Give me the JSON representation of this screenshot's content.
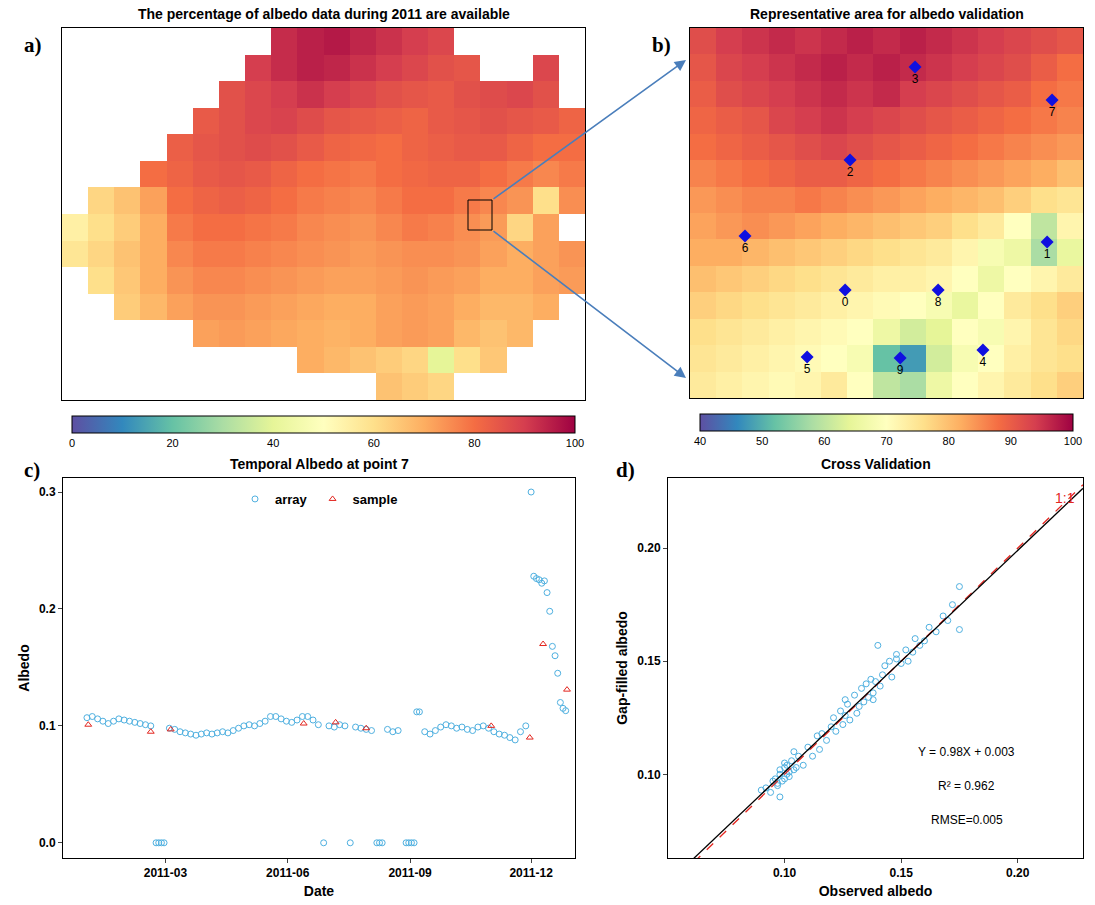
{
  "chart_data": [
    {
      "type": "heatmap",
      "panel": "a)",
      "title": "The percentage of albedo data during 2011 are available",
      "tick_labels": false,
      "grid": false,
      "z": [
        [
          null,
          null,
          null,
          null,
          null,
          null,
          null,
          null,
          93,
          95,
          96,
          94,
          92,
          90,
          88,
          null,
          null,
          null,
          null,
          null
        ],
        [
          null,
          null,
          null,
          null,
          null,
          null,
          null,
          90,
          93,
          95,
          94,
          92,
          90,
          88,
          86,
          85,
          null,
          null,
          88,
          null
        ],
        [
          null,
          null,
          null,
          null,
          null,
          null,
          86,
          88,
          90,
          92,
          90,
          88,
          86,
          85,
          84,
          86,
          87,
          88,
          86,
          null
        ],
        [
          null,
          null,
          null,
          null,
          null,
          84,
          86,
          88,
          89,
          87,
          85,
          84,
          83,
          82,
          84,
          85,
          86,
          85,
          84,
          82
        ],
        [
          null,
          null,
          null,
          null,
          83,
          85,
          86,
          87,
          86,
          84,
          82,
          81,
          80,
          82,
          83,
          84,
          84,
          82,
          80,
          80
        ],
        [
          null,
          null,
          null,
          80,
          82,
          84,
          85,
          84,
          82,
          80,
          79,
          78,
          80,
          81,
          82,
          82,
          80,
          78,
          76,
          78
        ],
        [
          null,
          62,
          66,
          72,
          80,
          82,
          83,
          82,
          80,
          78,
          77,
          76,
          78,
          80,
          80,
          78,
          76,
          74,
          60,
          75
        ],
        [
          55,
          60,
          64,
          70,
          78,
          80,
          80,
          79,
          78,
          76,
          75,
          74,
          76,
          78,
          77,
          75,
          73,
          62,
          72,
          null
        ],
        [
          58,
          62,
          66,
          70,
          76,
          78,
          78,
          77,
          76,
          75,
          74,
          73,
          74,
          75,
          75,
          74,
          72,
          70,
          72,
          74
        ],
        [
          null,
          60,
          65,
          70,
          74,
          76,
          76,
          75,
          74,
          73,
          72,
          72,
          73,
          74,
          73,
          72,
          70,
          70,
          72,
          73
        ],
        [
          null,
          null,
          64,
          68,
          72,
          74,
          74,
          73,
          72,
          71,
          70,
          70,
          72,
          73,
          72,
          70,
          68,
          68,
          70,
          null
        ],
        [
          null,
          null,
          null,
          null,
          null,
          72,
          73,
          72,
          71,
          70,
          69,
          70,
          72,
          73,
          72,
          68,
          66,
          68,
          null,
          null
        ],
        [
          null,
          null,
          null,
          null,
          null,
          null,
          null,
          null,
          null,
          70,
          68,
          66,
          64,
          62,
          40,
          60,
          65,
          null,
          null,
          null
        ],
        [
          null,
          null,
          null,
          null,
          null,
          null,
          null,
          null,
          null,
          null,
          null,
          null,
          66,
          64,
          62,
          null,
          null,
          null,
          null,
          null
        ]
      ],
      "color_range": [
        0,
        100
      ],
      "color_ticks": [
        0,
        20,
        40,
        60,
        80,
        100
      ]
    },
    {
      "type": "heatmap",
      "panel": "b)",
      "title": "Representative area for albedo validation",
      "tick_labels": false,
      "grid": false,
      "z": [
        [
          92,
          94,
          95,
          96,
          95,
          96,
          97,
          96,
          97,
          96,
          95,
          94,
          93,
          92,
          91
        ],
        [
          91,
          93,
          94,
          95,
          96,
          97,
          96,
          97,
          96,
          95,
          94,
          93,
          92,
          90,
          88
        ],
        [
          90,
          92,
          93,
          94,
          95,
          96,
          95,
          96,
          94,
          93,
          92,
          91,
          90,
          88,
          87
        ],
        [
          89,
          90,
          91,
          93,
          94,
          95,
          94,
          93,
          92,
          91,
          90,
          89,
          88,
          87,
          86
        ],
        [
          88,
          89,
          90,
          91,
          92,
          93,
          92,
          91,
          90,
          89,
          88,
          87,
          86,
          85,
          84
        ],
        [
          86,
          87,
          88,
          89,
          90,
          90,
          89,
          88,
          87,
          86,
          85,
          84,
          83,
          82,
          80
        ],
        [
          84,
          85,
          86,
          86,
          87,
          86,
          85,
          84,
          83,
          82,
          81,
          80,
          78,
          76,
          75
        ],
        [
          83,
          84,
          85,
          84,
          83,
          82,
          81,
          80,
          79,
          78,
          76,
          74,
          70,
          60,
          72
        ],
        [
          82,
          82,
          81,
          80,
          79,
          78,
          77,
          76,
          75,
          74,
          72,
          68,
          66,
          58,
          65
        ],
        [
          80,
          79,
          78,
          77,
          76,
          75,
          74,
          73,
          73,
          72,
          70,
          66,
          70,
          72,
          74
        ],
        [
          78,
          77,
          76,
          75,
          74,
          73,
          72,
          71,
          70,
          68,
          65,
          70,
          74,
          76,
          78
        ],
        [
          76,
          75,
          74,
          73,
          72,
          71,
          70,
          66,
          62,
          64,
          70,
          68,
          72,
          75,
          77
        ],
        [
          75,
          74,
          73,
          72,
          71,
          70,
          68,
          52,
          48,
          62,
          68,
          70,
          73,
          75,
          76
        ],
        [
          74,
          73,
          72,
          71,
          72,
          74,
          70,
          60,
          58,
          66,
          70,
          72,
          74,
          76,
          78
        ]
      ],
      "color_range": [
        40,
        100
      ],
      "color_ticks": [
        40,
        50,
        60,
        70,
        80,
        90,
        100
      ],
      "points": {
        "labels": [
          "0",
          "1",
          "2",
          "3",
          "4",
          "5",
          "6",
          "7",
          "8",
          "9"
        ],
        "x": [
          5.42,
          13.13,
          5.61,
          8.09,
          10.68,
          3.97,
          1.6,
          13.32,
          8.97,
          7.52
        ],
        "y": [
          9.41,
          7.6,
          4.49,
          0.98,
          11.68,
          11.95,
          7.37,
          2.22,
          9.41,
          11.99
        ],
        "color": "#1010e0",
        "marker": "diamond"
      }
    },
    {
      "type": "scatter",
      "panel": "c)",
      "title": "Temporal Albedo at point 7",
      "x_label": "Date",
      "y_label": "Albedo",
      "grid": false,
      "legend": "top",
      "xlim": [
        "2010-12-14",
        "2012-01-03"
      ],
      "xticks": [
        {
          "value": "2011-03-01",
          "label": "2011-03"
        },
        {
          "value": "2011-06-01",
          "label": "2011-06"
        },
        {
          "value": "2011-09-01",
          "label": "2011-09"
        },
        {
          "value": "2011-12-01",
          "label": "2011-12"
        }
      ],
      "ylim": [
        -0.013,
        0.312
      ],
      "yticks": [
        {
          "value": 0,
          "label": "0.0"
        },
        0.1,
        0.2,
        0.3
      ],
      "series": [
        {
          "name": "array",
          "color": "#4fb0e0",
          "marker": "open circle",
          "x": [
            "2011-01-01",
            "2011-01-05",
            "2011-01-09",
            "2011-01-13",
            "2011-01-17",
            "2011-01-21",
            "2011-01-25",
            "2011-01-29",
            "2011-02-02",
            "2011-02-06",
            "2011-02-10",
            "2011-02-14",
            "2011-02-18",
            "2011-02-22",
            "2011-02-24",
            "2011-02-26",
            "2011-02-28",
            "2011-03-04",
            "2011-03-08",
            "2011-03-12",
            "2011-03-16",
            "2011-03-20",
            "2011-03-24",
            "2011-03-28",
            "2011-04-01",
            "2011-04-05",
            "2011-04-09",
            "2011-04-13",
            "2011-04-17",
            "2011-04-21",
            "2011-04-25",
            "2011-04-29",
            "2011-05-03",
            "2011-05-07",
            "2011-05-11",
            "2011-05-15",
            "2011-05-19",
            "2011-05-23",
            "2011-05-27",
            "2011-05-31",
            "2011-06-04",
            "2011-06-08",
            "2011-06-12",
            "2011-06-16",
            "2011-06-20",
            "2011-06-24",
            "2011-06-28",
            "2011-07-02",
            "2011-07-06",
            "2011-07-10",
            "2011-07-14",
            "2011-07-18",
            "2011-07-22",
            "2011-07-26",
            "2011-07-30",
            "2011-08-03",
            "2011-08-07",
            "2011-08-09",
            "2011-08-11",
            "2011-08-15",
            "2011-08-19",
            "2011-08-23",
            "2011-08-29",
            "2011-08-31",
            "2011-09-02",
            "2011-09-04",
            "2011-09-06",
            "2011-09-08",
            "2011-09-12",
            "2011-09-16",
            "2011-09-20",
            "2011-09-24",
            "2011-09-28",
            "2011-10-02",
            "2011-10-06",
            "2011-10-10",
            "2011-10-14",
            "2011-10-18",
            "2011-10-22",
            "2011-10-26",
            "2011-10-30",
            "2011-11-03",
            "2011-11-07",
            "2011-11-11",
            "2011-11-15",
            "2011-11-19",
            "2011-11-23",
            "2011-11-27",
            "2011-12-01",
            "2011-12-03",
            "2011-12-05",
            "2011-12-07",
            "2011-12-09",
            "2011-12-11",
            "2011-12-13",
            "2011-12-15",
            "2011-12-17",
            "2011-12-19",
            "2011-12-21",
            "2011-12-23",
            "2011-12-25",
            "2011-12-27"
          ],
          "values": [
            0.107,
            0.108,
            0.106,
            0.104,
            0.102,
            0.104,
            0.106,
            0.105,
            0.104,
            0.103,
            0.102,
            0.101,
            0.1,
            0,
            0,
            0,
            0,
            0.098,
            0.097,
            0.095,
            0.094,
            0.093,
            0.092,
            0.093,
            0.094,
            0.093,
            0.094,
            0.095,
            0.094,
            0.096,
            0.098,
            0.1,
            0.101,
            0.1,
            0.102,
            0.104,
            0.108,
            0.108,
            0.106,
            0.104,
            0.103,
            0.105,
            0.108,
            0.108,
            0.105,
            0.101,
            0,
            0.1,
            0.099,
            0.101,
            0.1,
            0,
            0.099,
            0.098,
            0.097,
            0.096,
            0,
            0,
            0,
            0.097,
            0.095,
            0.096,
            0,
            0,
            0,
            0,
            0.112,
            0.112,
            0.095,
            0.093,
            0.096,
            0.099,
            0.101,
            0.1,
            0.098,
            0.099,
            0.097,
            0.096,
            0.099,
            0.1,
            0.098,
            0.095,
            0.093,
            0.092,
            0.09,
            0.088,
            0.095,
            0.1,
            0.3,
            0.228,
            0.226,
            0.225,
            0.222,
            0.224,
            0.214,
            0.198,
            0.168,
            0.16,
            0.145,
            0.12,
            0.115,
            0.113
          ]
        },
        {
          "name": "sample",
          "color": "#e3261f",
          "marker": "open triangle",
          "x": [
            "2011-01-02",
            "2011-02-18",
            "2011-03-05",
            "2011-06-13",
            "2011-07-07",
            "2011-07-30",
            "2011-11-01",
            "2011-11-30",
            "2011-12-10",
            "2011-12-28"
          ],
          "values": [
            0.101,
            0.095,
            0.097,
            0.102,
            0.103,
            0.098,
            0.1,
            0.09,
            0.17,
            0.131
          ]
        }
      ]
    },
    {
      "type": "scatter",
      "panel": "d)",
      "title": "Cross Validation",
      "x_label": "Observed albedo",
      "y_label": "Gap-filled albedo",
      "grid": false,
      "xlim": [
        0.05,
        0.228
      ],
      "ylim": [
        0.063,
        0.231
      ],
      "xticks": [
        {
          "value": 0.1,
          "label": "0.10"
        },
        0.15,
        {
          "value": 0.2,
          "label": "0.20"
        }
      ],
      "yticks": [
        {
          "value": 0.1,
          "label": "0.10"
        },
        0.15,
        {
          "value": 0.2,
          "label": "0.20"
        }
      ],
      "series": [
        {
          "name": "Gap-filled albedo",
          "color": "#4fb0e0",
          "marker": "open circle",
          "x": [
            0.09,
            0.092,
            0.094,
            0.095,
            0.096,
            0.097,
            0.098,
            0.098,
            0.099,
            0.1,
            0.1,
            0.101,
            0.101,
            0.102,
            0.102,
            0.103,
            0.104,
            0.105,
            0.106,
            0.098,
            0.097,
            0.1,
            0.104,
            0.108,
            0.11,
            0.112,
            0.114,
            0.115,
            0.116,
            0.118,
            0.12,
            0.121,
            0.122,
            0.124,
            0.125,
            0.126,
            0.127,
            0.128,
            0.13,
            0.131,
            0.132,
            0.133,
            0.134,
            0.135,
            0.136,
            0.137,
            0.138,
            0.139,
            0.14,
            0.141,
            0.142,
            0.143,
            0.145,
            0.146,
            0.148,
            0.15,
            0.152,
            0.153,
            0.155,
            0.156,
            0.158,
            0.16,
            0.162,
            0.165,
            0.168,
            0.17,
            0.172,
            0.175,
            0.175,
            0.148,
            0.138,
            0.126
          ],
          "values": [
            0.093,
            0.094,
            0.092,
            0.097,
            0.098,
            0.095,
            0.1,
            0.102,
            0.097,
            0.103,
            0.098,
            0.1,
            0.104,
            0.099,
            0.101,
            0.106,
            0.102,
            0.103,
            0.108,
            0.09,
            0.096,
            0.105,
            0.11,
            0.104,
            0.112,
            0.108,
            0.117,
            0.111,
            0.118,
            0.115,
            0.121,
            0.125,
            0.119,
            0.128,
            0.122,
            0.126,
            0.131,
            0.124,
            0.135,
            0.127,
            0.13,
            0.138,
            0.132,
            0.14,
            0.134,
            0.142,
            0.136,
            0.141,
            0.157,
            0.139,
            0.144,
            0.148,
            0.15,
            0.143,
            0.151,
            0.149,
            0.155,
            0.15,
            0.154,
            0.16,
            0.157,
            0.159,
            0.165,
            0.163,
            0.17,
            0.168,
            0.175,
            0.183,
            0.164,
            0.153,
            0.133,
            0.133
          ]
        }
      ],
      "fit": {
        "slope": 0.98,
        "intercept": 0.003,
        "color": "#000000",
        "line_style": "solid"
      },
      "reference_line": {
        "label": "1:1",
        "color": "#e3261f",
        "line_style": "dashed"
      },
      "annotations": [
        "Y = 0.98X + 0.003",
        "R² = 0.962",
        "RMSE=0.005"
      ]
    }
  ]
}
